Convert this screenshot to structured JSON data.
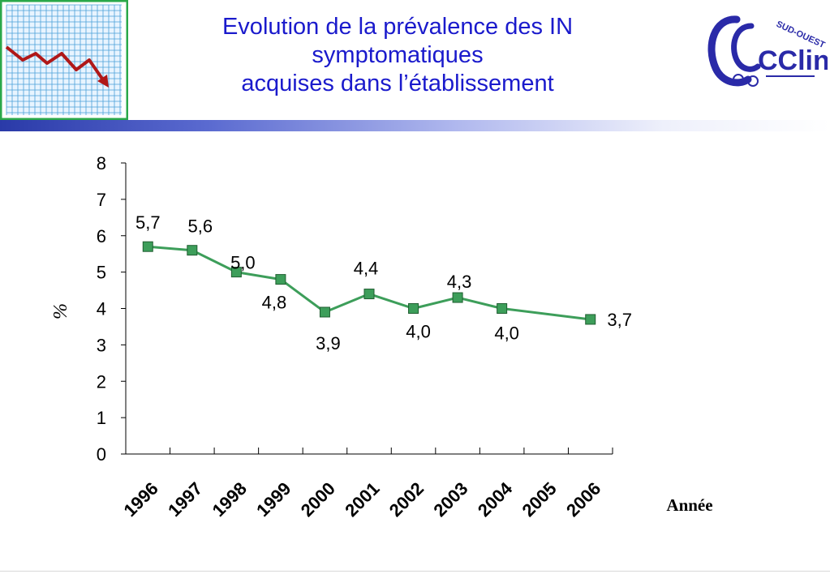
{
  "header": {
    "title_lines": [
      "Evolution de la prévalence des IN",
      "symptomatiques",
      "acquises dans l’établissement"
    ],
    "logo_text_main": "CClin",
    "logo_text_region": "SUD-OUEST",
    "icon": "declining-chart-icon"
  },
  "colors": {
    "title": "#1a1acc",
    "series_line": "#3d9e5a",
    "marker_fill": "#3d9e5a",
    "marker_stroke": "#1f5e30",
    "logo": "#2a2aa8"
  },
  "chart_data": {
    "type": "line",
    "categories": [
      "1996",
      "1997",
      "1998",
      "1999",
      "2000",
      "2001",
      "2002",
      "2003",
      "2004",
      "2005",
      "2006"
    ],
    "series": [
      {
        "points": [
          {
            "x": "1996",
            "y": 5.7,
            "label": "5,7"
          },
          {
            "x": "1997",
            "y": 5.6,
            "label": "5,6"
          },
          {
            "x": "1998",
            "y": 5.0,
            "label": "5,0"
          },
          {
            "x": "1999",
            "y": 4.8,
            "label": "4,8"
          },
          {
            "x": "2000",
            "y": 3.9,
            "label": "3,9"
          },
          {
            "x": "2001",
            "y": 4.4,
            "label": "4,4"
          },
          {
            "x": "2002",
            "y": 4.0,
            "label": "4,0"
          },
          {
            "x": "2003",
            "y": 4.3,
            "label": "4,3"
          },
          {
            "x": "2004",
            "y": 4.0,
            "label": "4,0"
          },
          {
            "x": "2006",
            "y": 3.7,
            "label": "3,7"
          }
        ]
      }
    ],
    "ylabel": "%",
    "xlabel": "Année",
    "ylim": [
      0,
      8
    ],
    "yticks": [
      "0",
      "1",
      "2",
      "3",
      "4",
      "5",
      "6",
      "7",
      "8"
    ],
    "grid": false,
    "legend": "none"
  }
}
